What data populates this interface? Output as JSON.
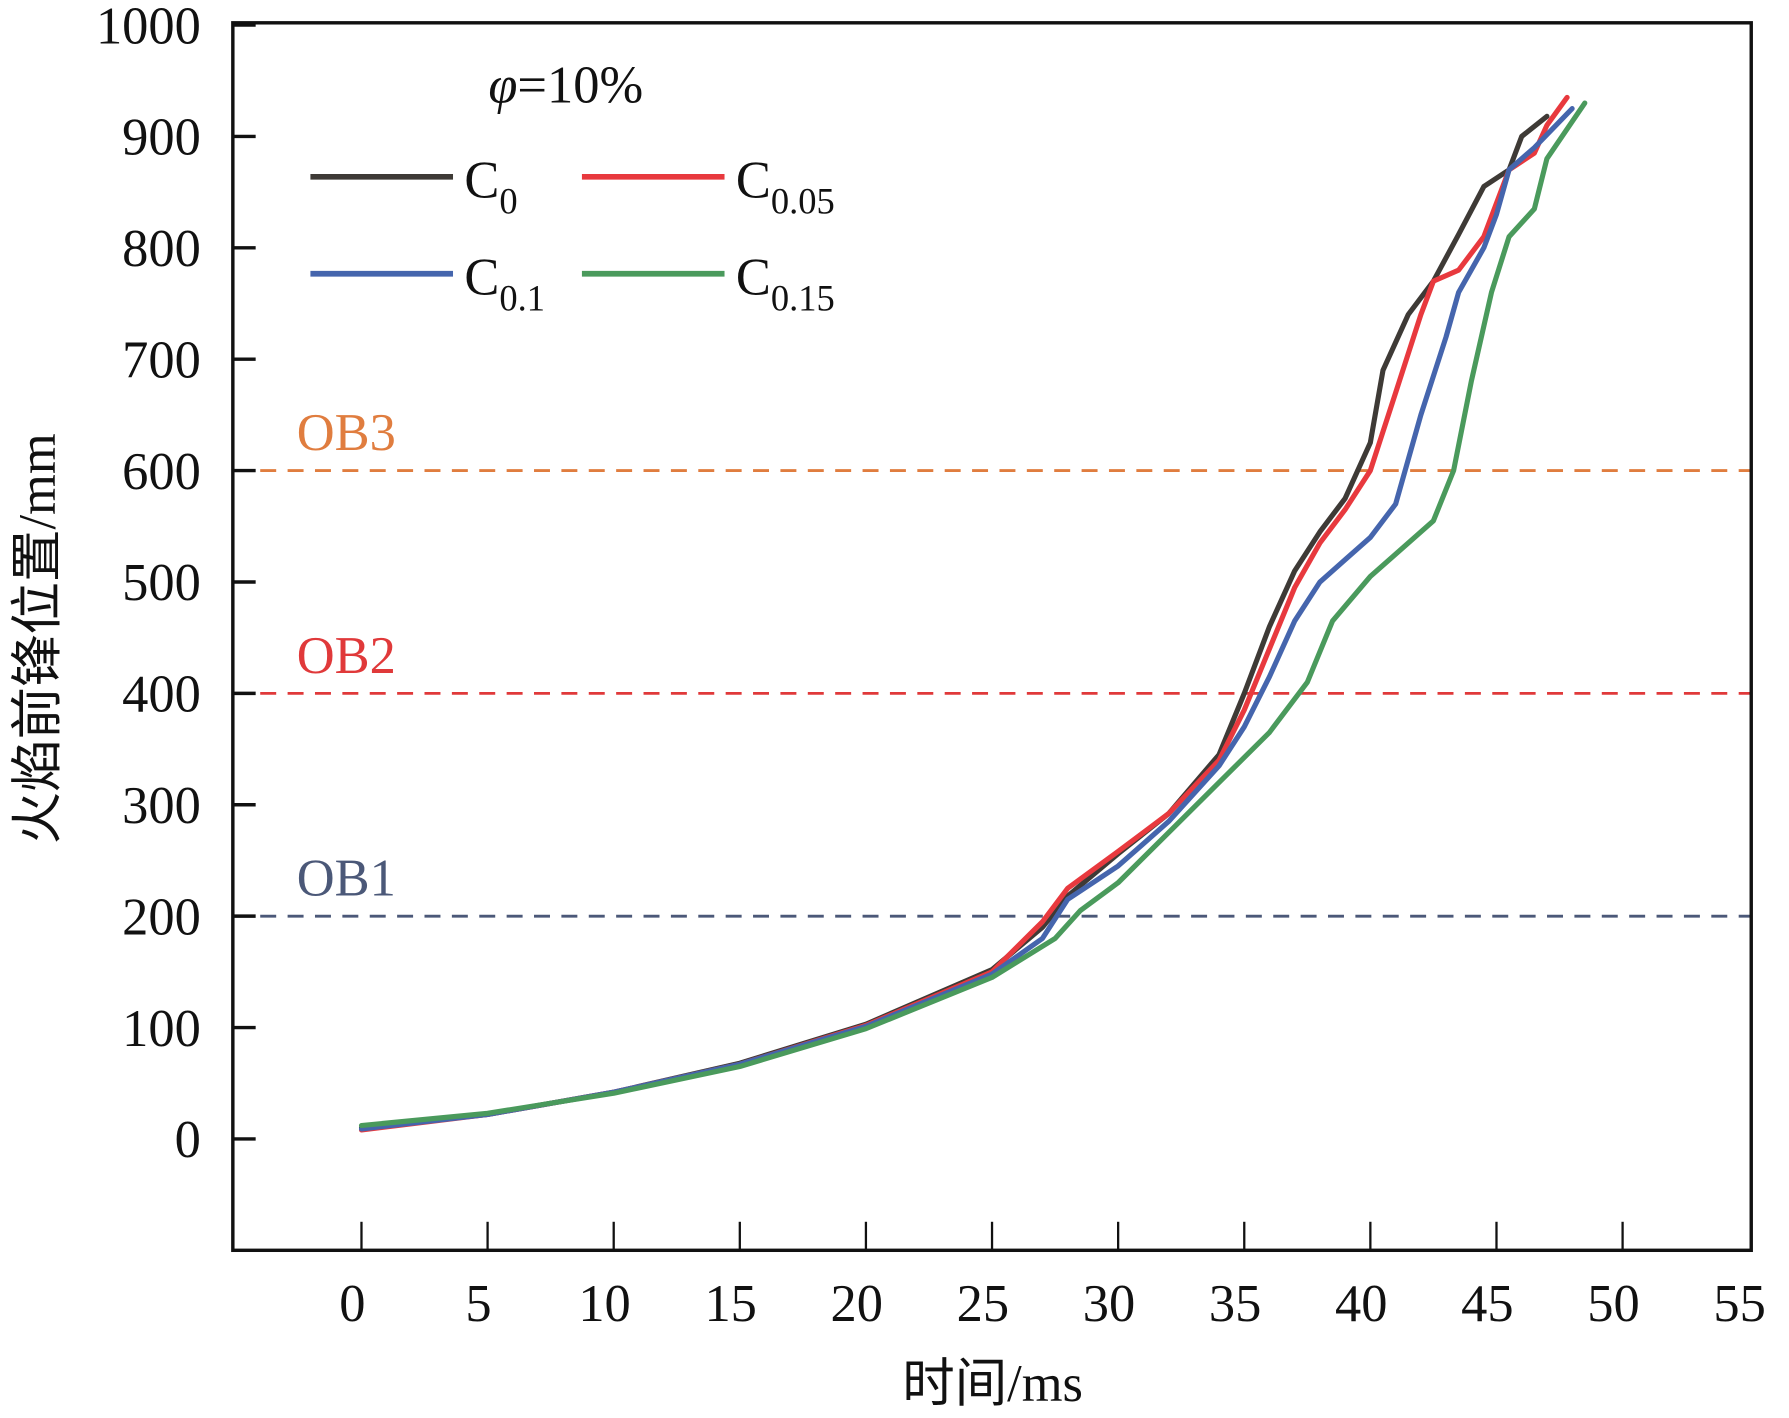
{
  "chart_data": {
    "type": "line",
    "xlabel": "时间/ms",
    "ylabel": "火焰前锋位置/mm",
    "annotation": "φ=10%",
    "annotation_symbol": "φ",
    "annotation_rest": "=10%",
    "xlim": [
      -5.1,
      55.1
    ],
    "ylim": [
      -100,
      1002
    ],
    "xticks": [
      0,
      5,
      10,
      15,
      20,
      25,
      30,
      35,
      40,
      45,
      50,
      55
    ],
    "yticks": [
      0,
      100,
      200,
      300,
      400,
      500,
      600,
      700,
      800,
      900,
      1000
    ],
    "grid": false,
    "legend_placement": "top-left",
    "reference_lines": [
      {
        "label": "OB1",
        "y": 200,
        "color": "#4b5878"
      },
      {
        "label": "OB2",
        "y": 400,
        "color": "#e0393a"
      },
      {
        "label": "OB3",
        "y": 600,
        "color": "#e07d3f"
      }
    ],
    "series": [
      {
        "name": "C0",
        "base": "C",
        "sub": "0",
        "color": "#3e3a36",
        "points": [
          [
            0,
            10
          ],
          [
            5,
            22
          ],
          [
            10,
            42
          ],
          [
            15,
            68
          ],
          [
            20,
            103
          ],
          [
            25,
            152
          ],
          [
            27,
            190
          ],
          [
            28,
            218
          ],
          [
            30,
            256
          ],
          [
            32,
            292
          ],
          [
            34,
            345
          ],
          [
            35,
            400
          ],
          [
            36,
            460
          ],
          [
            37,
            510
          ],
          [
            38,
            545
          ],
          [
            39,
            575
          ],
          [
            40,
            625
          ],
          [
            40.5,
            690
          ],
          [
            41.5,
            740
          ],
          [
            42.5,
            770
          ],
          [
            43.5,
            812
          ],
          [
            44.5,
            855
          ],
          [
            45.5,
            870
          ],
          [
            46,
            900
          ],
          [
            47,
            918
          ]
        ]
      },
      {
        "name": "C0.05",
        "base": "C",
        "sub": "0.05",
        "color": "#e8393e",
        "points": [
          [
            0,
            8
          ],
          [
            5,
            22
          ],
          [
            10,
            42
          ],
          [
            15,
            67
          ],
          [
            20,
            102
          ],
          [
            25,
            150
          ],
          [
            27,
            195
          ],
          [
            28,
            225
          ],
          [
            30,
            258
          ],
          [
            32,
            292
          ],
          [
            34,
            340
          ],
          [
            35,
            385
          ],
          [
            36,
            440
          ],
          [
            37,
            495
          ],
          [
            38,
            535
          ],
          [
            39,
            565
          ],
          [
            40,
            600
          ],
          [
            41,
            670
          ],
          [
            42,
            740
          ],
          [
            42.5,
            770
          ],
          [
            43.5,
            780
          ],
          [
            44.5,
            810
          ],
          [
            45.5,
            870
          ],
          [
            46.5,
            885
          ],
          [
            47,
            910
          ],
          [
            47.8,
            935
          ]
        ]
      },
      {
        "name": "C0.1",
        "base": "C",
        "sub": "0.1",
        "color": "#4565ad",
        "points": [
          [
            0,
            9
          ],
          [
            5,
            22
          ],
          [
            10,
            42
          ],
          [
            15,
            67
          ],
          [
            20,
            101
          ],
          [
            25,
            148
          ],
          [
            27,
            180
          ],
          [
            28,
            215
          ],
          [
            30,
            245
          ],
          [
            32,
            285
          ],
          [
            34,
            335
          ],
          [
            35,
            370
          ],
          [
            36,
            415
          ],
          [
            37,
            465
          ],
          [
            38,
            500
          ],
          [
            39,
            520
          ],
          [
            40,
            540
          ],
          [
            41,
            570
          ],
          [
            42,
            650
          ],
          [
            43,
            720
          ],
          [
            43.5,
            760
          ],
          [
            44.5,
            800
          ],
          [
            45,
            830
          ],
          [
            45.5,
            870
          ],
          [
            46.5,
            890
          ],
          [
            48,
            925
          ]
        ]
      },
      {
        "name": "C0.15",
        "base": "C",
        "sub": "0.15",
        "color": "#4a9a5c",
        "points": [
          [
            0,
            12
          ],
          [
            5,
            23
          ],
          [
            10,
            41
          ],
          [
            15,
            65
          ],
          [
            20,
            99
          ],
          [
            25,
            145
          ],
          [
            27.5,
            180
          ],
          [
            28.5,
            205
          ],
          [
            30,
            230
          ],
          [
            32,
            275
          ],
          [
            34,
            320
          ],
          [
            36,
            365
          ],
          [
            37.5,
            410
          ],
          [
            38.5,
            465
          ],
          [
            40,
            505
          ],
          [
            41.5,
            535
          ],
          [
            42.5,
            555
          ],
          [
            43.3,
            600
          ],
          [
            44,
            680
          ],
          [
            44.8,
            760
          ],
          [
            45.5,
            810
          ],
          [
            46.5,
            835
          ],
          [
            47,
            880
          ],
          [
            48.5,
            930
          ]
        ]
      }
    ]
  }
}
